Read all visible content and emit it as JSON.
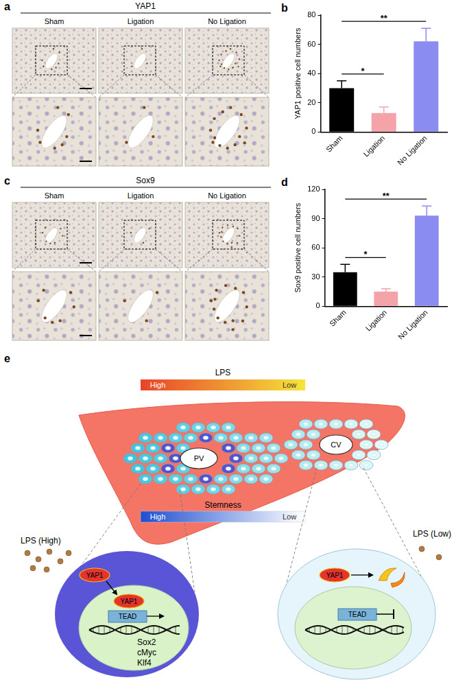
{
  "figure": {
    "image_panels": [
      {
        "label": "a",
        "title": "YAP1",
        "columns": [
          "Sham",
          "Ligation",
          "No Ligation"
        ]
      },
      {
        "label": "c",
        "title": "Sox9",
        "columns": [
          "Sham",
          "Ligation",
          "No Ligation"
        ]
      }
    ],
    "chart_panel_labels": [
      "b",
      "d"
    ],
    "diagram": {
      "label": "e",
      "lps_gradient": {
        "title": "LPS",
        "high": "High",
        "low": "Low"
      },
      "stemness_gradient": {
        "title": "Stemness",
        "high": "High",
        "low": "Low"
      },
      "vessels": [
        "PV",
        "CV"
      ],
      "left_cell": {
        "label": "LPS (High)",
        "yap": "YAP1",
        "tead": "TEAD",
        "genes": [
          "Sox2",
          "cMyc",
          "Klf4"
        ]
      },
      "right_cell": {
        "label": "LPS (Low)",
        "yap": "YAP1",
        "tead": "TEAD"
      }
    }
  },
  "chart_data": [
    {
      "type": "bar",
      "y_label": "YAP1 positive cell numbers",
      "categories": [
        "Sham",
        "Ligation",
        "No Ligation"
      ],
      "values": [
        30,
        13,
        62
      ],
      "errors": [
        5,
        4,
        9
      ],
      "colors": [
        "#000000",
        "#f4a3a8",
        "#8a8cf2"
      ],
      "ylim": [
        0,
        80
      ],
      "yticks": [
        0,
        20,
        40,
        60,
        80
      ],
      "grid": false,
      "significance": [
        {
          "between": [
            "Sham",
            "Ligation"
          ],
          "label": "*"
        },
        {
          "between": [
            "Sham",
            "No Ligation"
          ],
          "label": "**"
        }
      ]
    },
    {
      "type": "bar",
      "y_label": "Sox9 positive cell numbers",
      "categories": [
        "Sham",
        "Ligation",
        "No Ligation"
      ],
      "values": [
        35,
        15,
        93
      ],
      "errors": [
        8,
        3,
        10
      ],
      "colors": [
        "#000000",
        "#f4a3a8",
        "#8a8cf2"
      ],
      "ylim": [
        0,
        120
      ],
      "yticks": [
        0,
        30,
        60,
        90,
        120
      ],
      "grid": false,
      "significance": [
        {
          "between": [
            "Sham",
            "Ligation"
          ],
          "label": "*"
        },
        {
          "between": [
            "Sham",
            "No Ligation"
          ],
          "label": "**"
        }
      ]
    }
  ]
}
